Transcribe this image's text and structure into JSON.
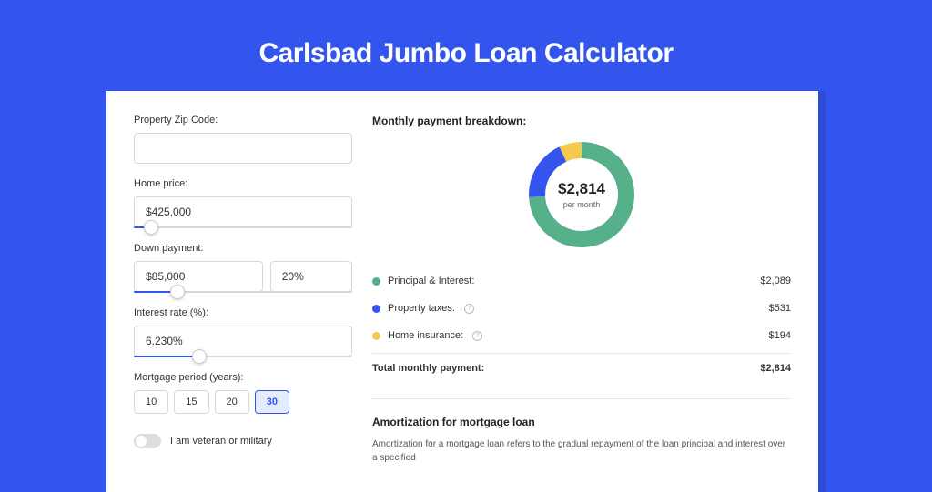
{
  "page": {
    "title": "Carlsbad Jumbo Loan Calculator",
    "background_color": "#3355ee",
    "title_color": "#ffffff",
    "title_fontsize": 30
  },
  "form": {
    "zip": {
      "label": "Property Zip Code:",
      "value": ""
    },
    "home_price": {
      "label": "Home price:",
      "value": "$425,000",
      "slider_pct": 8
    },
    "down_payment": {
      "label": "Down payment:",
      "value": "$85,000",
      "pct_value": "20%",
      "slider_pct": 20
    },
    "interest_rate": {
      "label": "Interest rate (%):",
      "value": "6.230%",
      "slider_pct": 30
    },
    "mortgage_period": {
      "label": "Mortgage period (years):",
      "options": [
        "10",
        "15",
        "20",
        "30"
      ],
      "selected": "30"
    },
    "veteran": {
      "label": "I am veteran or military",
      "checked": false
    }
  },
  "breakdown": {
    "title": "Monthly payment breakdown:",
    "donut": {
      "amount": "$2,814",
      "sub": "per month",
      "slices": [
        {
          "key": "principal_interest",
          "color": "#56b08a",
          "value": 2089
        },
        {
          "key": "property_taxes",
          "color": "#3355ee",
          "value": 531
        },
        {
          "key": "home_insurance",
          "color": "#f3c94e",
          "value": 194
        }
      ],
      "ring_width": 18,
      "size": 120
    },
    "rows": [
      {
        "label": "Principal & Interest:",
        "color": "#56b08a",
        "value": "$2,089",
        "info": false
      },
      {
        "label": "Property taxes:",
        "color": "#3355ee",
        "value": "$531",
        "info": true
      },
      {
        "label": "Home insurance:",
        "color": "#f3c94e",
        "value": "$194",
        "info": true
      }
    ],
    "total": {
      "label": "Total monthly payment:",
      "value": "$2,814"
    }
  },
  "amortization": {
    "title": "Amortization for mortgage loan",
    "text": "Amortization for a mortgage loan refers to the gradual repayment of the loan principal and interest over a specified"
  }
}
